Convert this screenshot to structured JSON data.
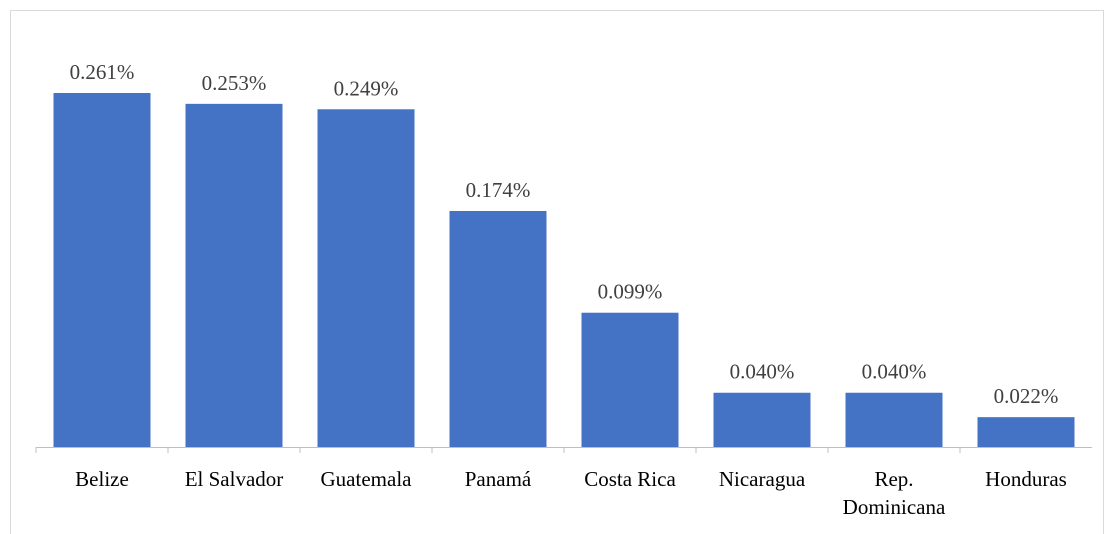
{
  "chart_data": {
    "type": "bar",
    "categories": [
      [
        "Belize"
      ],
      [
        "El Salvador"
      ],
      [
        "Guatemala"
      ],
      [
        "Panamá"
      ],
      [
        "Costa Rica"
      ],
      [
        "Nicaragua"
      ],
      [
        "Rep.",
        "Dominicana"
      ],
      [
        "Honduras"
      ]
    ],
    "values": [
      0.261,
      0.253,
      0.249,
      0.174,
      0.099,
      0.04,
      0.04,
      0.022
    ],
    "data_labels": [
      "0.261%",
      "0.253%",
      "0.249%",
      "0.174%",
      "0.099%",
      "0.040%",
      "0.040%",
      "0.022%"
    ],
    "title": "",
    "xlabel": "",
    "ylabel": "",
    "ylim": [
      0,
      0.3
    ],
    "grid": false,
    "bar_color": "#4472C4",
    "axis_color": "#bfbfbf"
  }
}
